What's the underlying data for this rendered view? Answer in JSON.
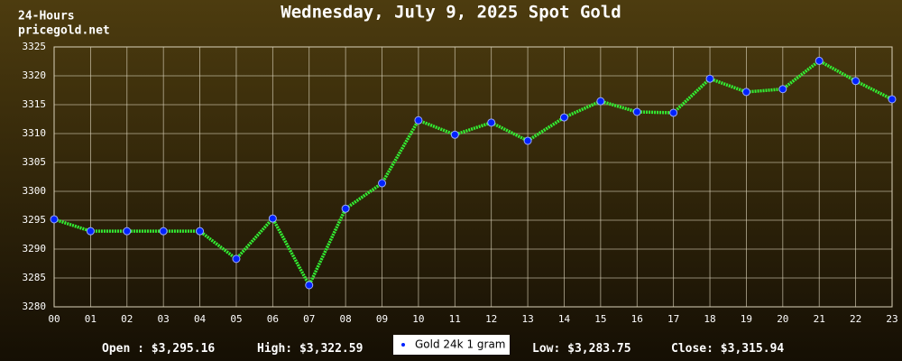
{
  "chart_data": {
    "type": "line",
    "title": "Wednesday, July 9, 2025 Spot Gold",
    "corner_text": [
      "24-Hours",
      "pricegold.net"
    ],
    "categories": [
      "00",
      "01",
      "02",
      "03",
      "04",
      "05",
      "06",
      "07",
      "08",
      "09",
      "10",
      "11",
      "12",
      "13",
      "14",
      "15",
      "16",
      "17",
      "18",
      "19",
      "20",
      "21",
      "22",
      "23"
    ],
    "series": [
      {
        "name": "Gold 24k 1 gram",
        "color": "#33ee33",
        "marker_color": "#0022ff",
        "values": [
          3295.16,
          3293.1,
          3293.1,
          3293.1,
          3293.1,
          3288.3,
          3295.3,
          3283.75,
          3297.0,
          3301.4,
          3312.3,
          3309.8,
          3311.9,
          3308.75,
          3312.8,
          3315.6,
          3313.75,
          3313.6,
          3319.5,
          3317.2,
          3317.7,
          3322.59,
          3319.1,
          3315.94
        ]
      }
    ],
    "ylim": [
      3280,
      3325
    ],
    "yticks": [
      3280,
      3285,
      3290,
      3295,
      3300,
      3305,
      3310,
      3315,
      3320,
      3325
    ],
    "grid": true,
    "stats": [
      {
        "label": "Open :",
        "value": "$3,295.16"
      },
      {
        "label": "High:",
        "value": "$3,322.59"
      },
      {
        "label": "Low:",
        "value": "$3,283.75"
      },
      {
        "label": "Close:",
        "value": "$3,315.94"
      }
    ]
  }
}
